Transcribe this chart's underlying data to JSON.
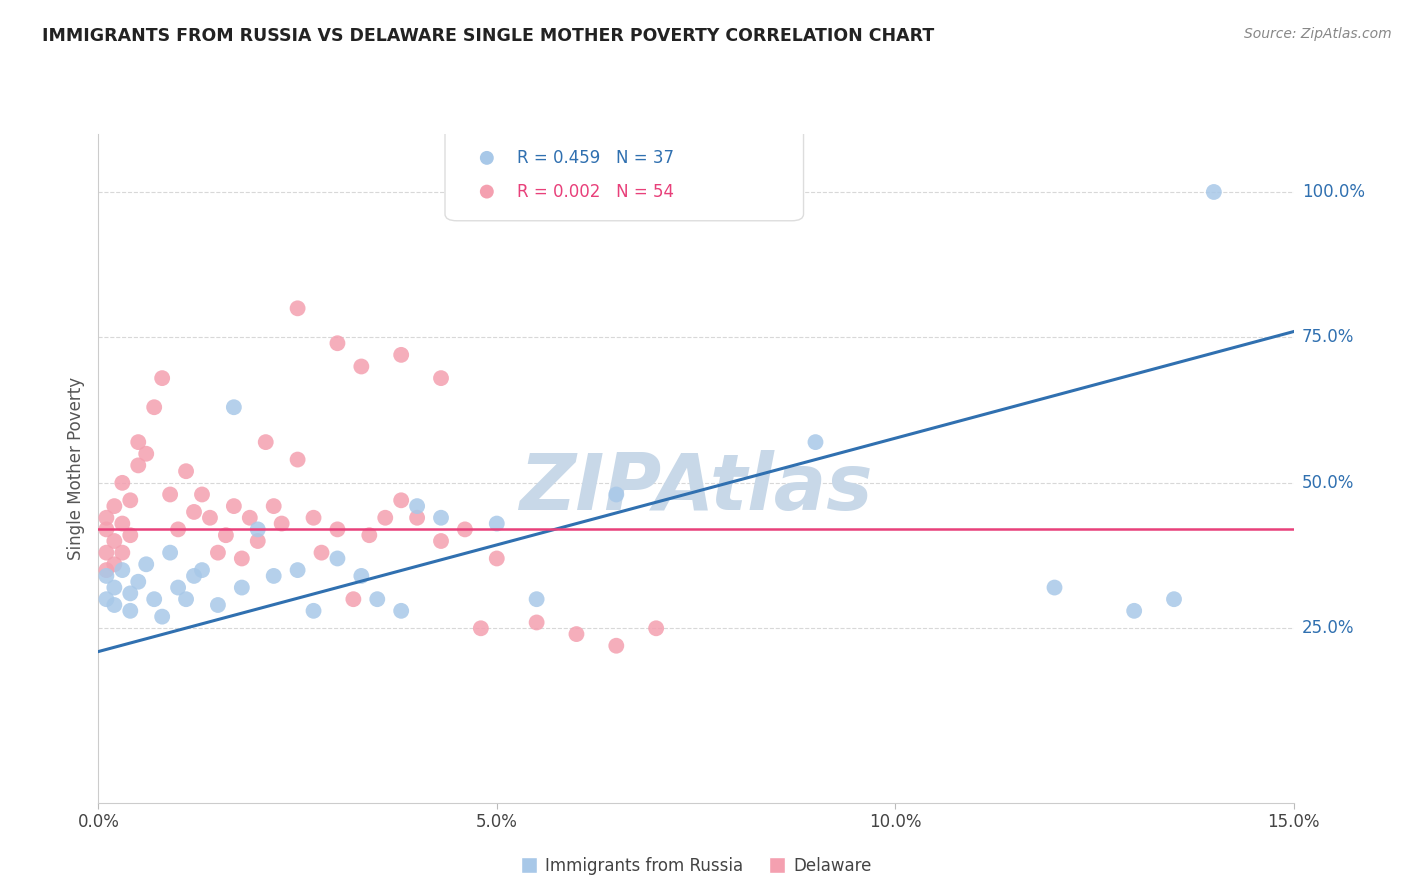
{
  "title": "IMMIGRANTS FROM RUSSIA VS DELAWARE SINGLE MOTHER POVERTY CORRELATION CHART",
  "source": "Source: ZipAtlas.com",
  "ylabel": "Single Mother Poverty",
  "xlim": [
    0.0,
    0.15
  ],
  "ylim": [
    -0.05,
    1.1
  ],
  "xticks": [
    0.0,
    0.05,
    0.1,
    0.15
  ],
  "xtick_labels": [
    "0.0%",
    "5.0%",
    "10.0%",
    "15.0%"
  ],
  "ytick_labels_right": [
    "25.0%",
    "50.0%",
    "75.0%",
    "100.0%"
  ],
  "ytick_vals_right": [
    0.25,
    0.5,
    0.75,
    1.0
  ],
  "legend_blue_r": "R = 0.459",
  "legend_blue_n": "N = 37",
  "legend_pink_r": "R = 0.002",
  "legend_pink_n": "N = 54",
  "blue_color": "#a8c8e8",
  "pink_color": "#f4a0b0",
  "blue_line_color": "#3070b0",
  "pink_line_color": "#e8407a",
  "watermark": "ZIPAtlas",
  "watermark_color": "#c8d8e8",
  "blue_scatter_x": [
    0.001,
    0.001,
    0.002,
    0.002,
    0.003,
    0.004,
    0.004,
    0.005,
    0.006,
    0.007,
    0.008,
    0.009,
    0.01,
    0.011,
    0.012,
    0.013,
    0.015,
    0.017,
    0.018,
    0.02,
    0.022,
    0.025,
    0.027,
    0.03,
    0.033,
    0.035,
    0.038,
    0.04,
    0.043,
    0.05,
    0.055,
    0.065,
    0.09,
    0.12,
    0.13,
    0.14,
    0.135
  ],
  "blue_scatter_y": [
    0.3,
    0.34,
    0.32,
    0.29,
    0.35,
    0.31,
    0.28,
    0.33,
    0.36,
    0.3,
    0.27,
    0.38,
    0.32,
    0.3,
    0.34,
    0.35,
    0.29,
    0.63,
    0.32,
    0.42,
    0.34,
    0.35,
    0.28,
    0.37,
    0.34,
    0.3,
    0.28,
    0.46,
    0.44,
    0.43,
    0.3,
    0.48,
    0.57,
    0.32,
    0.28,
    1.0,
    0.3
  ],
  "pink_scatter_x": [
    0.001,
    0.001,
    0.001,
    0.001,
    0.002,
    0.002,
    0.002,
    0.003,
    0.003,
    0.003,
    0.004,
    0.004,
    0.005,
    0.005,
    0.006,
    0.007,
    0.008,
    0.009,
    0.01,
    0.011,
    0.012,
    0.013,
    0.014,
    0.015,
    0.016,
    0.017,
    0.018,
    0.019,
    0.02,
    0.021,
    0.022,
    0.023,
    0.025,
    0.027,
    0.028,
    0.03,
    0.032,
    0.034,
    0.036,
    0.038,
    0.04,
    0.043,
    0.046,
    0.05,
    0.055,
    0.06,
    0.065,
    0.07,
    0.025,
    0.03,
    0.033,
    0.038,
    0.043,
    0.048
  ],
  "pink_scatter_y": [
    0.35,
    0.38,
    0.42,
    0.44,
    0.36,
    0.4,
    0.46,
    0.38,
    0.43,
    0.5,
    0.41,
    0.47,
    0.53,
    0.57,
    0.55,
    0.63,
    0.68,
    0.48,
    0.42,
    0.52,
    0.45,
    0.48,
    0.44,
    0.38,
    0.41,
    0.46,
    0.37,
    0.44,
    0.4,
    0.57,
    0.46,
    0.43,
    0.54,
    0.44,
    0.38,
    0.42,
    0.3,
    0.41,
    0.44,
    0.47,
    0.44,
    0.4,
    0.42,
    0.37,
    0.26,
    0.24,
    0.22,
    0.25,
    0.8,
    0.74,
    0.7,
    0.72,
    0.68,
    0.25
  ],
  "blue_line_x": [
    0.0,
    0.15
  ],
  "blue_line_y": [
    0.21,
    0.76
  ],
  "pink_line_y": [
    0.42,
    0.42
  ],
  "background_color": "#ffffff",
  "grid_color": "#d8d8d8"
}
